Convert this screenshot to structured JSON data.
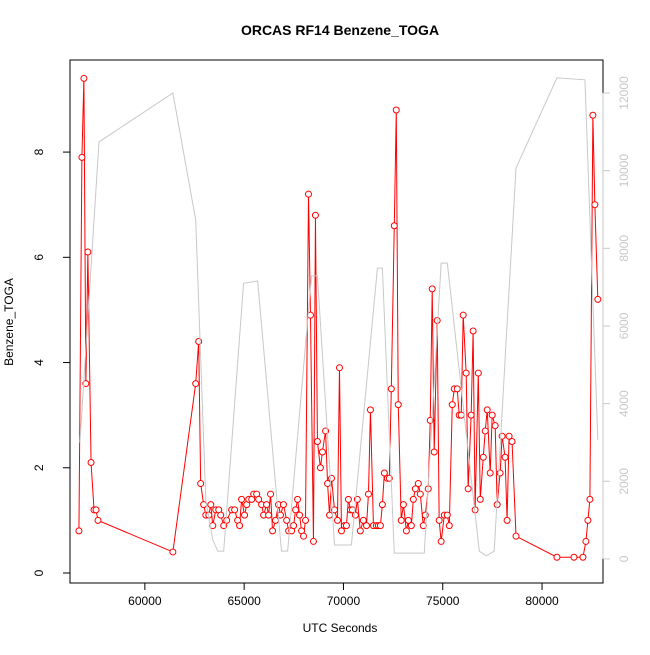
{
  "chart_data": {
    "type": "line",
    "title": "ORCAS RF14 Benzene_TOGA",
    "xlabel": "UTC Seconds",
    "ylabel": "Benzene_TOGA",
    "xlim": [
      56230,
      83070
    ],
    "xticks": [
      60000,
      65000,
      70000,
      75000,
      80000
    ],
    "ylim": [
      -0.19,
      9.75
    ],
    "yticks": [
      0,
      2,
      4,
      6,
      8
    ],
    "y2lim": [
      -620,
      12850
    ],
    "y2ticks": [
      0,
      2000,
      4000,
      6000,
      8000,
      10000,
      12000
    ],
    "series": [
      {
        "color": "#ff0000",
        "markers": true,
        "x": [
          56680,
          56830,
          56930,
          57030,
          57130,
          57290,
          57440,
          57540,
          57640,
          61410,
          62560,
          62710,
          62810,
          62960,
          63070,
          63220,
          63320,
          63420,
          63570,
          63720,
          63820,
          63970,
          64120,
          64370,
          64520,
          64670,
          64770,
          64870,
          65020,
          65130,
          65230,
          65380,
          65480,
          65630,
          65730,
          65880,
          65980,
          66130,
          66230,
          66330,
          66430,
          66580,
          66730,
          66830,
          66980,
          67140,
          67240,
          67390,
          67490,
          67590,
          67690,
          67790,
          67890,
          67990,
          68090,
          68240,
          68340,
          68490,
          68590,
          68690,
          68840,
          68940,
          69100,
          69200,
          69300,
          69400,
          69550,
          69700,
          69800,
          69900,
          70050,
          70150,
          70250,
          70350,
          70450,
          70600,
          70700,
          70850,
          71000,
          71160,
          71260,
          71360,
          71510,
          71660,
          71760,
          71860,
          71960,
          72060,
          72210,
          72310,
          72410,
          72560,
          72660,
          72760,
          72910,
          73020,
          73170,
          73270,
          73420,
          73520,
          73620,
          73770,
          73870,
          74020,
          74120,
          74270,
          74370,
          74470,
          74570,
          74720,
          74820,
          74920,
          75080,
          75230,
          75330,
          75480,
          75580,
          75730,
          75830,
          75930,
          76030,
          76180,
          76280,
          76430,
          76530,
          76630,
          76790,
          76890,
          77040,
          77140,
          77240,
          77390,
          77490,
          77640,
          77740,
          77890,
          77990,
          78140,
          78240,
          78340,
          78490,
          78690,
          80750,
          81610,
          82060,
          82210,
          82310,
          82410,
          82560,
          82660,
          82810
        ],
        "values": [
          0.8,
          7.9,
          9.4,
          3.6,
          6.1,
          2.1,
          1.2,
          1.2,
          1.0,
          0.4,
          3.6,
          4.4,
          1.7,
          1.3,
          1.1,
          1.1,
          1.3,
          0.9,
          1.2,
          1.2,
          1.1,
          0.9,
          1.0,
          1.2,
          1.2,
          1.0,
          0.9,
          1.4,
          1.1,
          1.3,
          1.4,
          1.4,
          1.5,
          1.5,
          1.4,
          1.3,
          1.1,
          1.3,
          1.1,
          1.5,
          0.8,
          1.0,
          1.3,
          1.1,
          1.3,
          1.0,
          0.8,
          0.8,
          0.9,
          1.2,
          1.4,
          1.1,
          0.8,
          0.7,
          1.0,
          7.2,
          4.9,
          0.6,
          6.8,
          2.5,
          2.0,
          2.3,
          2.7,
          1.7,
          1.1,
          1.8,
          1.2,
          1.0,
          3.9,
          0.8,
          0.9,
          0.9,
          1.4,
          1.2,
          1.2,
          1.1,
          1.4,
          0.8,
          1.0,
          0.9,
          1.5,
          3.1,
          0.9,
          0.9,
          0.9,
          0.9,
          1.3,
          1.9,
          1.8,
          1.8,
          3.5,
          6.6,
          8.8,
          3.2,
          1.0,
          1.3,
          0.8,
          1.0,
          0.9,
          1.4,
          1.6,
          1.7,
          1.5,
          0.9,
          1.1,
          1.6,
          2.9,
          5.4,
          2.3,
          4.8,
          1.0,
          0.6,
          1.1,
          1.1,
          0.9,
          3.2,
          3.5,
          3.5,
          3.0,
          3.0,
          4.9,
          3.8,
          1.6,
          3.0,
          4.6,
          1.2,
          3.8,
          1.4,
          2.2,
          2.7,
          3.1,
          1.9,
          3.0,
          2.8,
          1.3,
          1.9,
          2.6,
          2.2,
          1.0,
          2.6,
          2.5,
          0.7,
          0.3,
          0.3,
          0.3,
          0.6,
          1.0,
          1.4,
          8.7,
          7.0,
          5.2
        ]
      },
      {
        "color": "#c8c8c8",
        "axis": "y2",
        "markers": false,
        "x": [
          56730,
          57690,
          61410,
          62560,
          63070,
          63420,
          63670,
          63970,
          64970,
          65680,
          66880,
          67190,
          68390,
          68690,
          69550,
          70400,
          71710,
          71960,
          72560,
          72810,
          73820,
          74070,
          74920,
          75230,
          76840,
          77190,
          77590,
          78690,
          80750,
          82160,
          82810
        ],
        "values": [
          3000,
          10740,
          12000,
          8730,
          1500,
          490,
          200,
          200,
          7100,
          7160,
          200,
          200,
          7290,
          7290,
          360,
          360,
          7490,
          7490,
          150,
          150,
          150,
          150,
          7620,
          7620,
          200,
          80,
          200,
          10070,
          12390,
          12340,
          3060
        ]
      }
    ]
  }
}
